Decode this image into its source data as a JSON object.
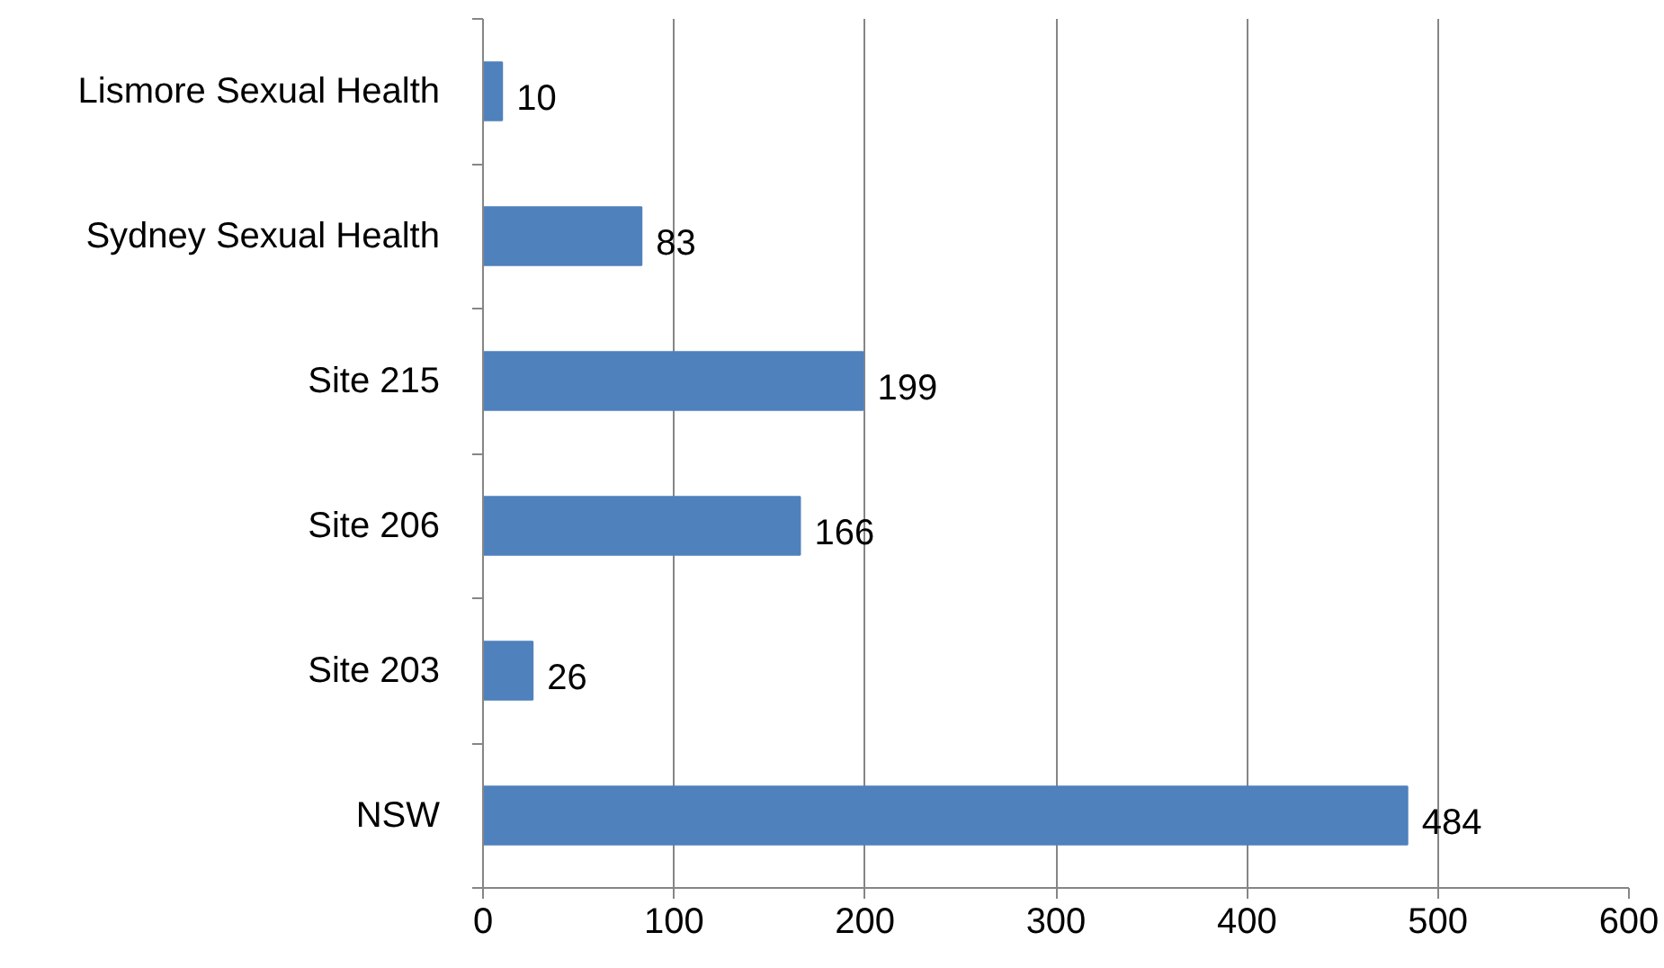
{
  "chart_data": {
    "type": "bar",
    "orientation": "horizontal",
    "categories": [
      "Lismore Sexual Health",
      "Sydney Sexual Health",
      "Site 215",
      "Site 206",
      "Site 203",
      "NSW"
    ],
    "values": [
      10,
      83,
      199,
      166,
      26,
      484
    ],
    "color": "#4f81bd",
    "xlim": [
      0,
      600
    ],
    "xticks": [
      0,
      100,
      200,
      300,
      400,
      500,
      600
    ],
    "grid": "x",
    "data_labels": true
  }
}
